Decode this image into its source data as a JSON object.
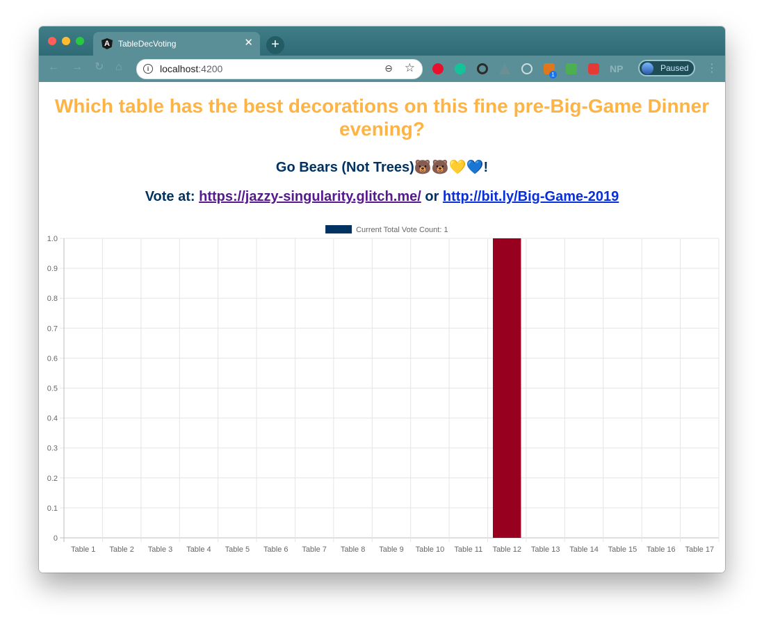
{
  "browser": {
    "tab_title": "TableDecVoting",
    "tab_close": "✕",
    "new_tab": "+",
    "url_host": "localhost",
    "url_port": ":4200",
    "profile_label": "Paused",
    "extension_np": "NP",
    "extension_badge": "1"
  },
  "page": {
    "title": "Which table has the best decorations on this fine pre-Big-Game Dinner evening?",
    "subtitle": "Go Bears (Not Trees)🐻🐻💛💙!",
    "vote_prefix": "Vote at:",
    "link1": "https://jazzy-singularity.glitch.me/",
    "vote_or": "or",
    "link2": "http://bit.ly/Big-Game-2019"
  },
  "chart_data": {
    "type": "bar",
    "legend": "Current Total Vote Count: 1",
    "legend_color": "#003262",
    "bar_color": "#98001f",
    "categories": [
      "Table 1",
      "Table 2",
      "Table 3",
      "Table 4",
      "Table 5",
      "Table 6",
      "Table 7",
      "Table 8",
      "Table 9",
      "Table 10",
      "Table 11",
      "Table 12",
      "Table 13",
      "Table 14",
      "Table 15",
      "Table 16",
      "Table 17"
    ],
    "values": [
      0,
      0,
      0,
      0,
      0,
      0,
      0,
      0,
      0,
      0,
      0,
      1,
      0,
      0,
      0,
      0,
      0
    ],
    "ylim": [
      0,
      1.0
    ],
    "yticks": [
      "0",
      "0.1",
      "0.2",
      "0.3",
      "0.4",
      "0.5",
      "0.6",
      "0.7",
      "0.8",
      "0.9",
      "1.0"
    ],
    "grid": true,
    "legend_position": "top"
  }
}
